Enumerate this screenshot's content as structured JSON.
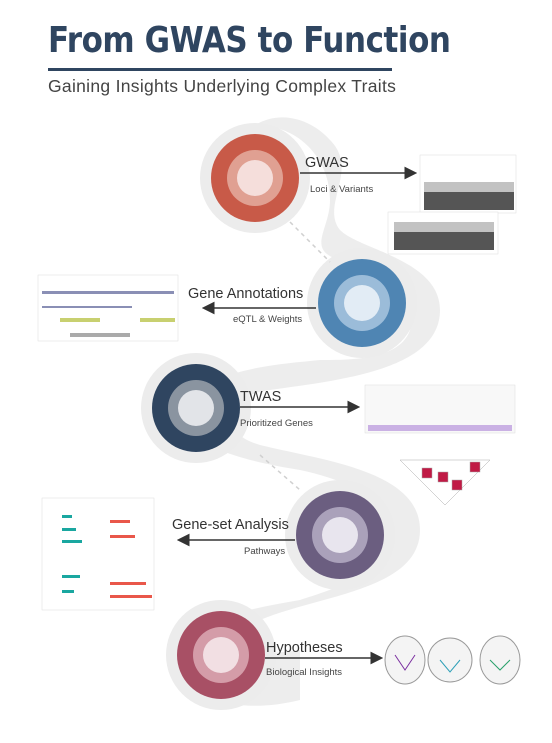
{
  "header": {
    "title": "From GWAS to Function",
    "subtitle": "Gaining Insights Underlying Complex Traits"
  },
  "steps": [
    {
      "title": "GWAS",
      "subtitle": "Loci & Variants",
      "colors": [
        "#c85a48",
        "#e0a092",
        "#f5dedb"
      ]
    },
    {
      "title": "Gene Annotations",
      "subtitle": "eQTL & Weights",
      "colors": [
        "#4f85b3",
        "#9bbcd9",
        "#e2ecf5"
      ]
    },
    {
      "title": "TWAS",
      "subtitle": "Prioritized Genes",
      "colors": [
        "#2f4560",
        "#8a94a0",
        "#e2e4e8"
      ]
    },
    {
      "title": "Gene-set Analysis",
      "subtitle": "Pathways",
      "colors": [
        "#6b5e80",
        "#aaa1ba",
        "#e8e5ee"
      ]
    },
    {
      "title": "Hypotheses",
      "subtitle": "Biological Insights",
      "colors": [
        "#a85065",
        "#d49ca8",
        "#f2dfe3"
      ]
    }
  ]
}
